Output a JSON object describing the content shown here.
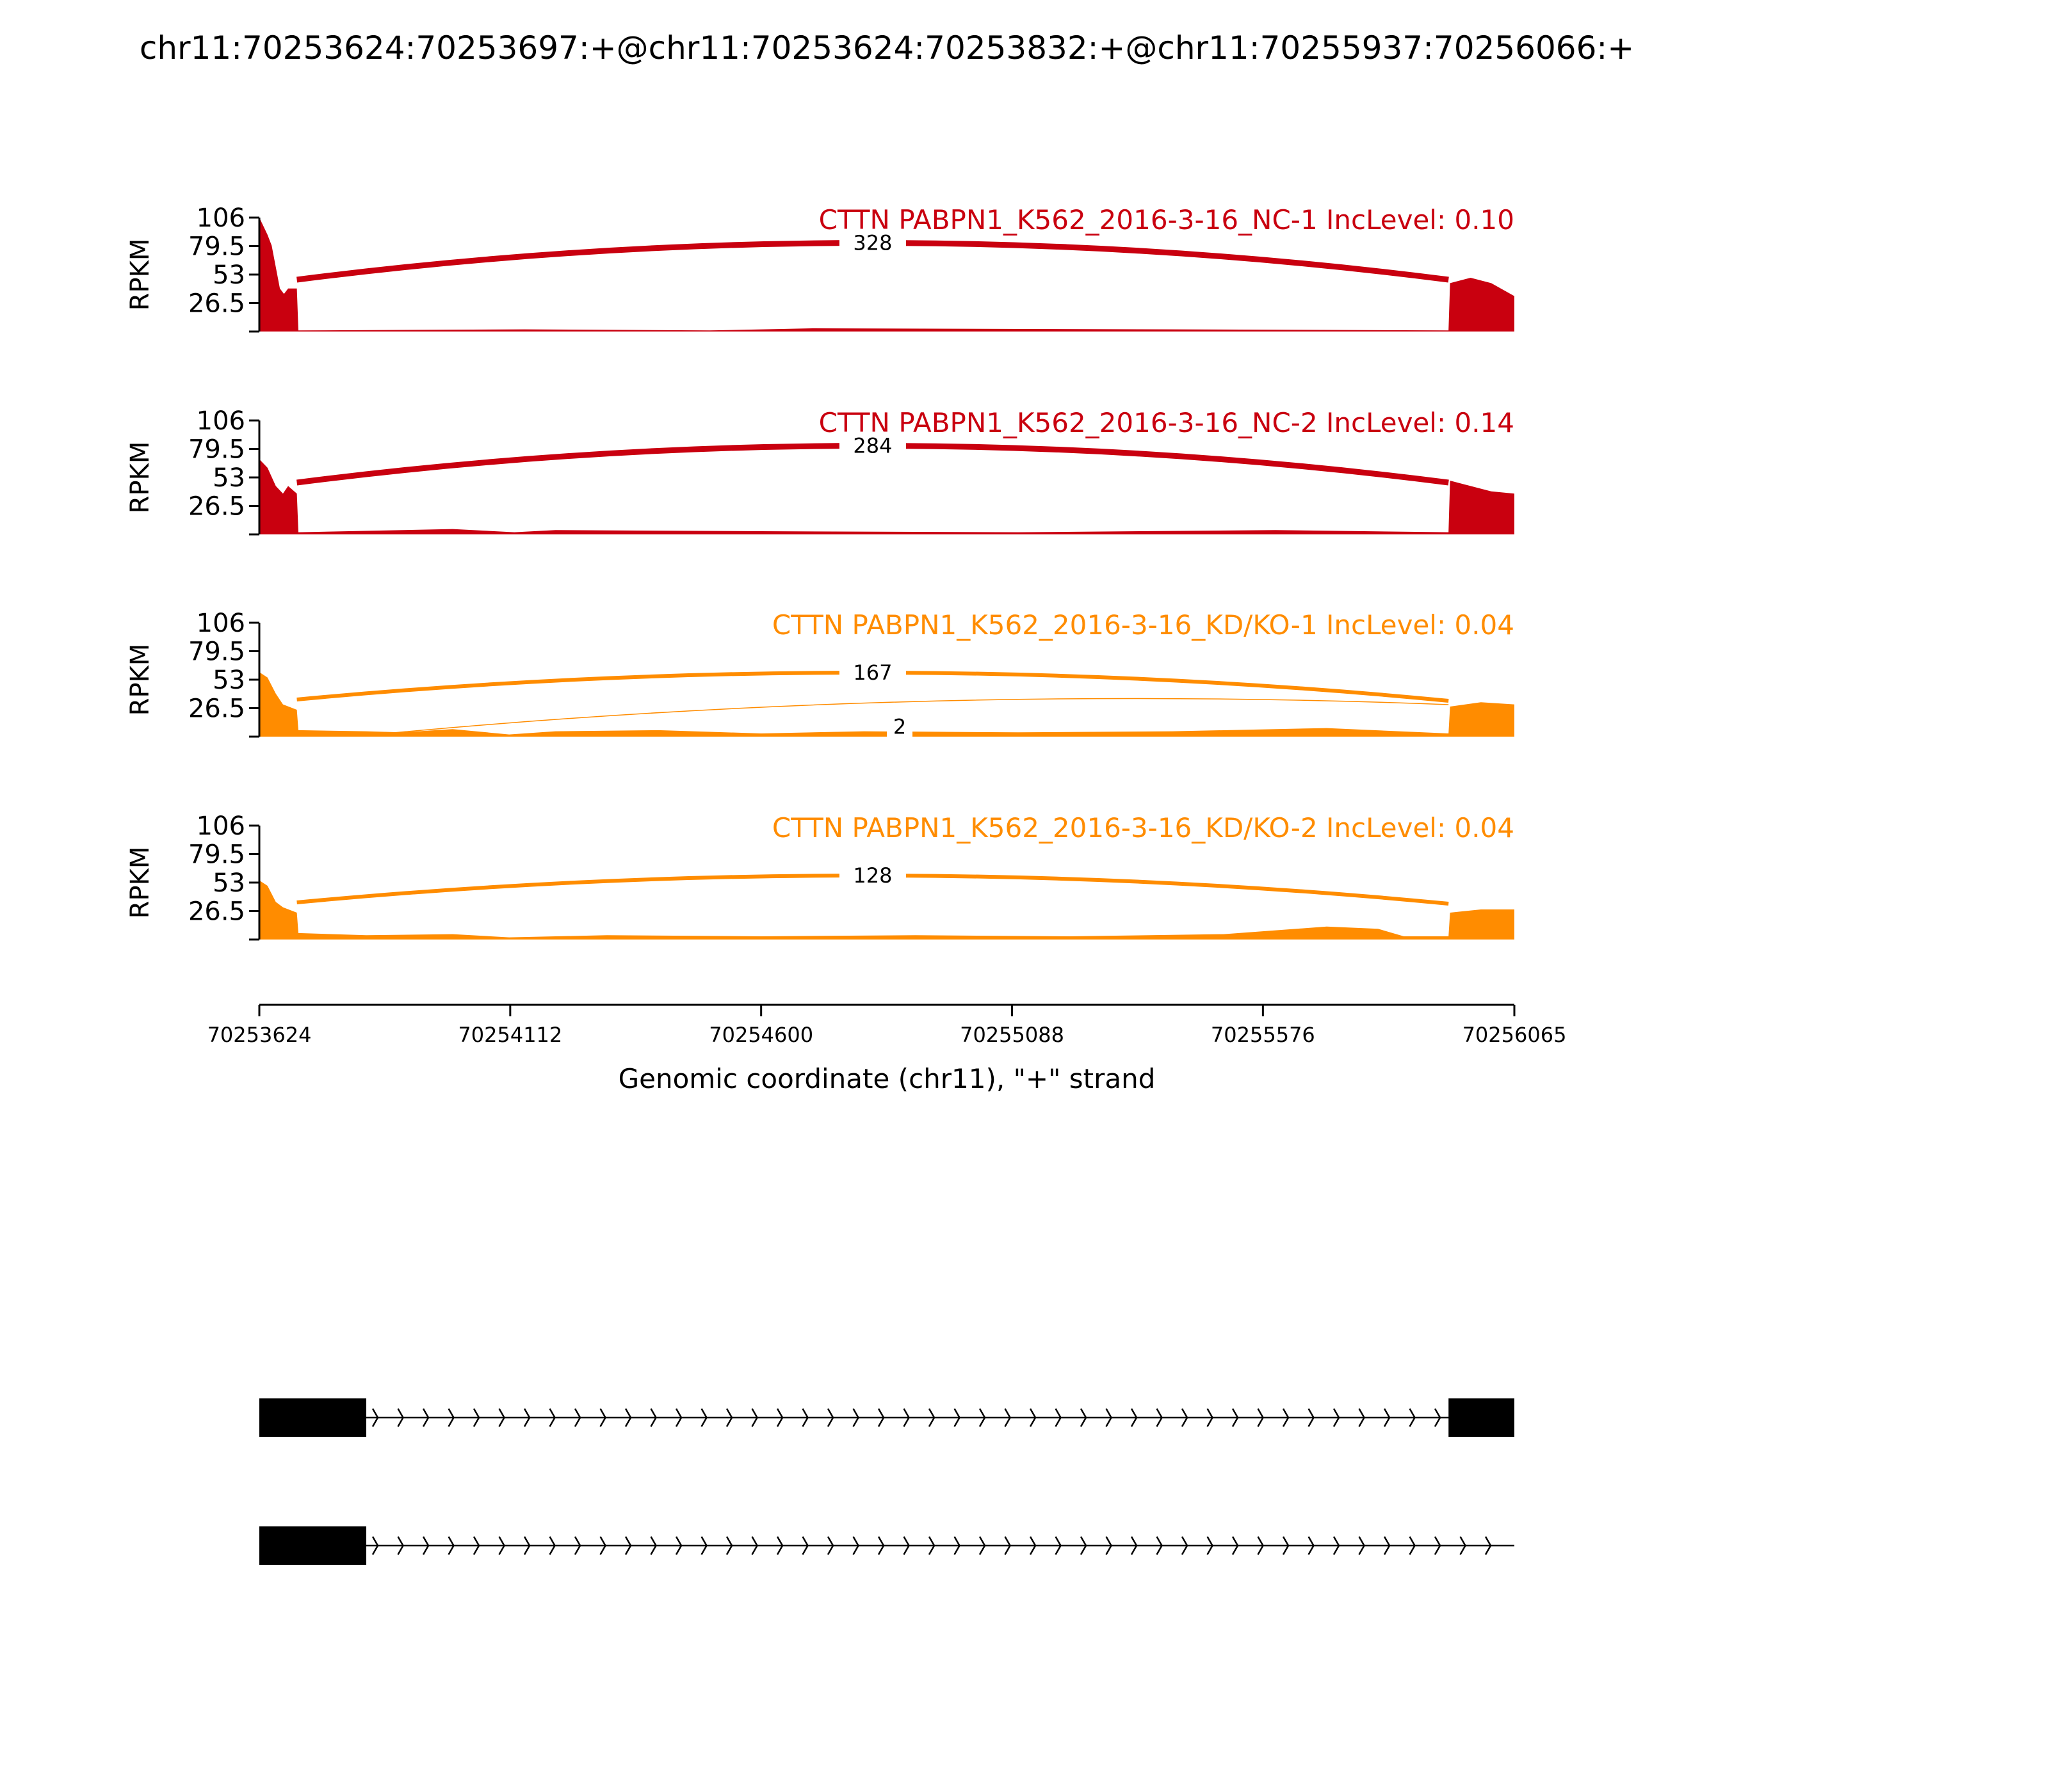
{
  "title": "chr11:70253624:70253697:+@chr11:70253624:70253832:+@chr11:70255937:70256066:+",
  "chart_data": {
    "type": "area",
    "title": "chr11:70253624:70253697:+@chr11:70253624:70253832:+@chr11:70255937:70256066:+",
    "xlabel": "Genomic coordinate (chr11), \"+\" strand",
    "ylabel": "RPKM",
    "xlim": [
      70253624,
      70256065
    ],
    "x_ticks": [
      "70253624",
      "70254112",
      "70254600",
      "70255088",
      "70255576",
      "70256065"
    ],
    "y_ticks": [
      "106",
      "79.5",
      "53",
      "26.5"
    ],
    "ylim": [
      0,
      106
    ],
    "panels": [
      {
        "label": "CTTN PABPN1_K562_2016-3-16_NC-1 IncLevel: 0.10",
        "color": "#c9000f",
        "coverage": [
          [
            70253624,
            106
          ],
          [
            70253632,
            98
          ],
          [
            70253640,
            90
          ],
          [
            70253648,
            80
          ],
          [
            70253656,
            60
          ],
          [
            70253664,
            40
          ],
          [
            70253672,
            35
          ],
          [
            70253680,
            40
          ],
          [
            70253690,
            40
          ],
          [
            70253697,
            40
          ],
          [
            70253700,
            1
          ],
          [
            70254140,
            2
          ],
          [
            70254500,
            1
          ],
          [
            70254700,
            3
          ],
          [
            70255400,
            2
          ],
          [
            70255937,
            1
          ],
          [
            70255940,
            45
          ],
          [
            70255980,
            50
          ],
          [
            70256020,
            45
          ],
          [
            70256065,
            33
          ]
        ],
        "junctions": [
          {
            "start": 70253697,
            "end": 70255937,
            "count": "328",
            "weight": "heavy"
          }
        ]
      },
      {
        "label": "CTTN PABPN1_K562_2016-3-16_NC-2 IncLevel: 0.14",
        "color": "#c9000f",
        "coverage": [
          [
            70253624,
            70
          ],
          [
            70253640,
            62
          ],
          [
            70253656,
            45
          ],
          [
            70253670,
            38
          ],
          [
            70253680,
            45
          ],
          [
            70253697,
            38
          ],
          [
            70253700,
            2
          ],
          [
            70254000,
            5
          ],
          [
            70254120,
            2
          ],
          [
            70254200,
            4
          ],
          [
            70254600,
            3
          ],
          [
            70255100,
            2
          ],
          [
            70255600,
            4
          ],
          [
            70255937,
            2
          ],
          [
            70255940,
            50
          ],
          [
            70255980,
            45
          ],
          [
            70256020,
            40
          ],
          [
            70256065,
            38
          ]
        ],
        "junctions": [
          {
            "start": 70253697,
            "end": 70255937,
            "count": "284",
            "weight": "heavy"
          }
        ]
      },
      {
        "label": "CTTN PABPN1_K562_2016-3-16_KD/KO-1 IncLevel: 0.04",
        "color": "#ff8c00",
        "coverage": [
          [
            70253624,
            60
          ],
          [
            70253640,
            55
          ],
          [
            70253656,
            40
          ],
          [
            70253670,
            30
          ],
          [
            70253697,
            25
          ],
          [
            70253700,
            6
          ],
          [
            70253832,
            5
          ],
          [
            70253900,
            4
          ],
          [
            70254000,
            7
          ],
          [
            70254110,
            2
          ],
          [
            70254200,
            5
          ],
          [
            70254400,
            6
          ],
          [
            70254600,
            3
          ],
          [
            70254800,
            5
          ],
          [
            70255100,
            4
          ],
          [
            70255400,
            5
          ],
          [
            70255700,
            8
          ],
          [
            70255937,
            3
          ],
          [
            70255940,
            28
          ],
          [
            70256000,
            32
          ],
          [
            70256065,
            30
          ]
        ],
        "junctions": [
          {
            "start": 70253697,
            "end": 70255937,
            "count": "167",
            "weight": "medium"
          },
          {
            "start": 70253832,
            "end": 70255937,
            "count": "2",
            "weight": "thin"
          }
        ]
      },
      {
        "label": "CTTN PABPN1_K562_2016-3-16_KD/KO-2 IncLevel: 0.04",
        "color": "#ff8c00",
        "coverage": [
          [
            70253624,
            55
          ],
          [
            70253640,
            50
          ],
          [
            70253656,
            35
          ],
          [
            70253670,
            30
          ],
          [
            70253697,
            25
          ],
          [
            70253700,
            6
          ],
          [
            70253832,
            4
          ],
          [
            70254000,
            5
          ],
          [
            70254110,
            2
          ],
          [
            70254300,
            4
          ],
          [
            70254600,
            3
          ],
          [
            70254900,
            4
          ],
          [
            70255200,
            3
          ],
          [
            70255500,
            5
          ],
          [
            70255700,
            12
          ],
          [
            70255800,
            10
          ],
          [
            70255850,
            3
          ],
          [
            70255937,
            3
          ],
          [
            70255940,
            25
          ],
          [
            70256000,
            28
          ],
          [
            70256065,
            28
          ]
        ],
        "junctions": [
          {
            "start": 70253697,
            "end": 70255937,
            "count": "128",
            "weight": "medium"
          }
        ]
      }
    ],
    "transcripts": [
      {
        "exons": [
          [
            70253624,
            70253832
          ],
          [
            70255937,
            70256065
          ]
        ],
        "strand": "+"
      },
      {
        "exons": [
          [
            70253624,
            70253832
          ]
        ],
        "strand": "+",
        "line_end": 70256065
      }
    ]
  }
}
